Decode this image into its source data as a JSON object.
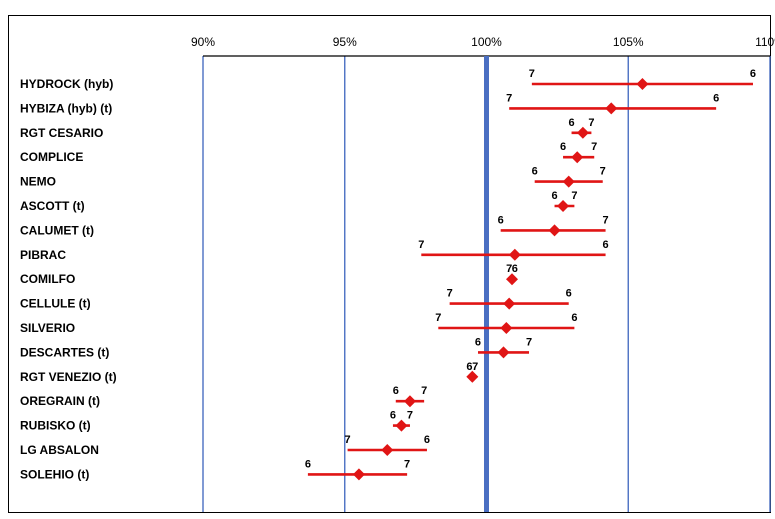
{
  "chart_data": {
    "type": "scatter",
    "title": "",
    "xlabel": "",
    "ylabel": "",
    "xlim": [
      0.9,
      1.1
    ],
    "x_ticks": [
      {
        "value": 0.9,
        "label": "90%"
      },
      {
        "value": 0.95,
        "label": "95%"
      },
      {
        "value": 1.0,
        "label": "100%"
      },
      {
        "value": 1.05,
        "label": "105%"
      },
      {
        "value": 1.1,
        "label": "110%"
      }
    ],
    "reference_line": 1.0,
    "grid": true,
    "marker_color": "#e01515",
    "grid_color": "#4a6fc2",
    "rows": [
      {
        "label": "HYDROCK (hyb)",
        "value": 1.055,
        "min": 1.016,
        "max": 1.094,
        "min_label": "7",
        "max_label": "6"
      },
      {
        "label": "HYBIZA (hyb) (t)",
        "value": 1.044,
        "min": 1.008,
        "max": 1.081,
        "min_label": "7",
        "max_label": "6"
      },
      {
        "label": "RGT CESARIO",
        "value": 1.034,
        "min": 1.03,
        "max": 1.037,
        "min_label": "6",
        "max_label": "7"
      },
      {
        "label": "COMPLICE",
        "value": 1.032,
        "min": 1.027,
        "max": 1.038,
        "min_label": "6",
        "max_label": "7"
      },
      {
        "label": "NEMO",
        "value": 1.029,
        "min": 1.017,
        "max": 1.041,
        "min_label": "6",
        "max_label": "7"
      },
      {
        "label": "ASCOTT (t)",
        "value": 1.027,
        "min": 1.024,
        "max": 1.031,
        "min_label": "6",
        "max_label": "7"
      },
      {
        "label": "CALUMET (t)",
        "value": 1.024,
        "min": 1.005,
        "max": 1.042,
        "min_label": "6",
        "max_label": "7"
      },
      {
        "label": "PIBRAC",
        "value": 1.01,
        "min": 0.977,
        "max": 1.042,
        "min_label": "7",
        "max_label": "6"
      },
      {
        "label": "COMILFO",
        "value": 1.009,
        "min": 1.008,
        "max": 1.01,
        "min_label": "7",
        "max_label": "6"
      },
      {
        "label": "CELLULE (t)",
        "value": 1.008,
        "min": 0.987,
        "max": 1.029,
        "min_label": "7",
        "max_label": "6"
      },
      {
        "label": "SILVERIO",
        "value": 1.007,
        "min": 0.983,
        "max": 1.031,
        "min_label": "7",
        "max_label": "6"
      },
      {
        "label": "DESCARTES (t)",
        "value": 1.006,
        "min": 0.997,
        "max": 1.015,
        "min_label": "6",
        "max_label": "7"
      },
      {
        "label": "RGT VENEZIO (t)",
        "value": 0.995,
        "min": 0.994,
        "max": 0.996,
        "min_label": "6",
        "max_label": "7"
      },
      {
        "label": "OREGRAIN (t)",
        "value": 0.973,
        "min": 0.968,
        "max": 0.978,
        "min_label": "6",
        "max_label": "7"
      },
      {
        "label": "RUBISKO (t)",
        "value": 0.97,
        "min": 0.967,
        "max": 0.973,
        "min_label": "6",
        "max_label": "7"
      },
      {
        "label": "LG ABSALON",
        "value": 0.965,
        "min": 0.951,
        "max": 0.979,
        "min_label": "7",
        "max_label": "6"
      },
      {
        "label": "SOLEHIO (t)",
        "value": 0.955,
        "min": 0.937,
        "max": 0.972,
        "min_label": "6",
        "max_label": "7"
      }
    ]
  }
}
